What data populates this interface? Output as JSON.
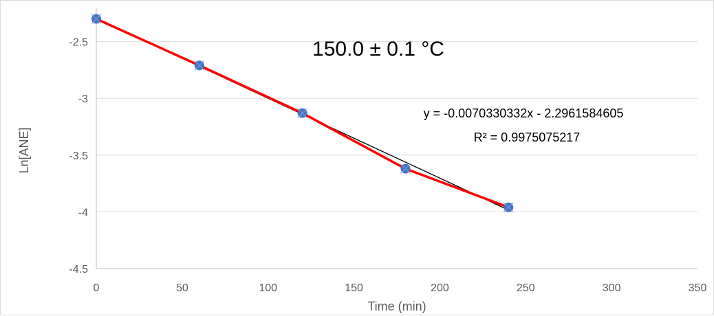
{
  "chart_data": {
    "type": "scatter",
    "title": "150.0 ± 0.1 °C",
    "xlabel": "Time (min)",
    "ylabel": "Ln[ANE]",
    "xlim": [
      0,
      350
    ],
    "ylim": [
      -4.5,
      -2.2
    ],
    "x_ticks": [
      0,
      50,
      100,
      150,
      200,
      250,
      300,
      350
    ],
    "y_ticks": [
      -2.5,
      -3,
      -3.5,
      -4,
      -4.5
    ],
    "y_tick_labels": [
      "-2.5",
      "-3",
      "-3.5",
      "-4",
      "-4.5"
    ],
    "x_tick_labels": [
      "0",
      "50",
      "100",
      "150",
      "200",
      "250",
      "300",
      "350"
    ],
    "grid": "horizontal",
    "series": [
      {
        "x": [
          0,
          60,
          120,
          180,
          240
        ],
        "y": [
          -2.3,
          -2.71,
          -3.13,
          -3.62,
          -3.96
        ],
        "color": "#4472c4",
        "connector_color": "#ff0000"
      }
    ],
    "trendline": {
      "type": "linear",
      "slope": -0.0070330332,
      "intercept": -2.2961584605,
      "color": "#000000",
      "equation": "y = -0.0070330332x - 2.2961584605",
      "r_squared": "R² = 0.9975075217"
    }
  }
}
